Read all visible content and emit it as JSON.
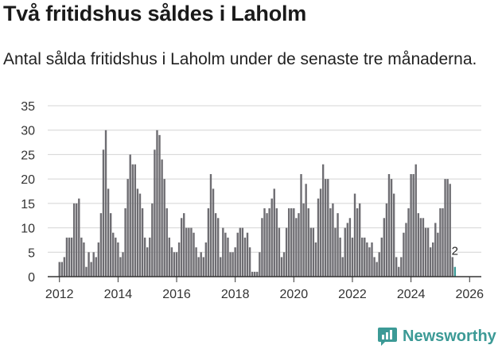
{
  "title": "Två fritidshus såldes i Laholm",
  "subtitle": "Antal sålda fritidshus i Laholm under de senaste tre månaderna.",
  "brand": {
    "name": "Newsworthy",
    "icon": "newsworthy-logo-icon",
    "color": "#3c9a96"
  },
  "colors": {
    "bar": "#6e6d72",
    "highlight": "#3c9a96",
    "grid": "#d4d4d4",
    "axis": "#333333"
  },
  "chart_data": {
    "type": "bar",
    "title": "Två fritidshus såldes i Laholm",
    "subtitle": "Antal sålda fritidshus i Laholm under de senaste tre månaderna.",
    "xlabel": "",
    "ylabel": "",
    "ylim": [
      0,
      35
    ],
    "yticks": [
      0,
      5,
      10,
      15,
      20,
      25,
      30,
      35
    ],
    "xlim": [
      2011.6,
      2026.4
    ],
    "xticks": [
      "2012",
      "2014",
      "2016",
      "2018",
      "2020",
      "2022",
      "2024",
      "2026"
    ],
    "x_start": 2012.0,
    "x_step": 0.08333,
    "grid": true,
    "values": [
      3,
      3,
      4,
      8,
      8,
      8,
      15,
      15,
      16,
      8,
      7,
      2,
      5,
      3,
      5,
      4,
      7,
      13,
      26,
      30,
      18,
      13,
      9,
      8,
      7,
      4,
      5,
      14,
      20,
      25,
      23,
      23,
      18,
      17,
      14,
      8,
      6,
      8,
      15,
      26,
      30,
      29,
      24,
      20,
      14,
      8,
      6,
      5,
      5,
      7,
      12,
      13,
      10,
      10,
      10,
      9,
      6,
      4,
      5,
      4,
      7,
      14,
      21,
      18,
      13,
      12,
      4,
      10,
      9,
      8,
      5,
      5,
      6,
      9,
      10,
      10,
      8,
      9,
      6,
      1,
      1,
      1,
      5,
      12,
      14,
      13,
      14,
      16,
      18,
      14,
      10,
      4,
      5,
      10,
      14,
      14,
      14,
      12,
      13,
      21,
      15,
      19,
      14,
      10,
      10,
      7,
      16,
      18,
      23,
      20,
      20,
      14,
      15,
      10,
      13,
      8,
      4,
      10,
      11,
      12,
      8,
      17,
      14,
      15,
      8,
      8,
      7,
      6,
      7,
      4,
      3,
      5,
      8,
      12,
      15,
      21,
      20,
      17,
      4,
      2,
      4,
      9,
      11,
      14,
      21,
      21,
      23,
      13,
      12,
      12,
      10,
      10,
      6,
      7,
      11,
      9,
      14,
      14,
      20,
      20,
      19,
      4,
      2
    ],
    "highlight_last": true,
    "annotations": [
      {
        "label": "2",
        "target": "last"
      }
    ]
  }
}
